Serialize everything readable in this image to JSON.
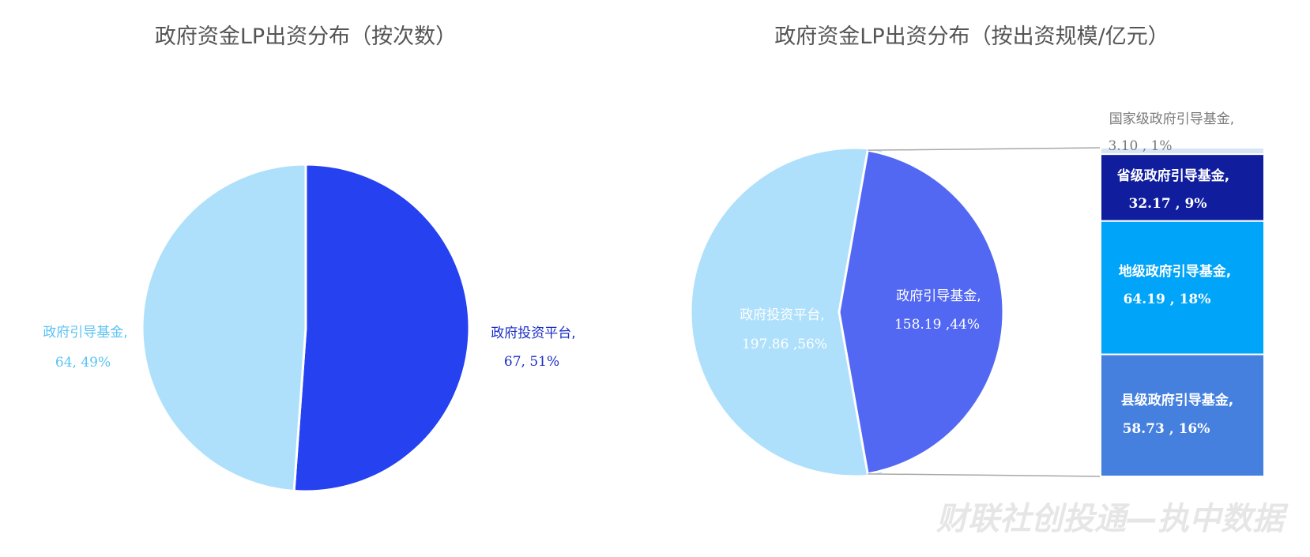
{
  "chart_data": [
    {
      "type": "pie",
      "title": "政府资金LP出资分布（按次数）",
      "slices": [
        {
          "name": "政府投资平台",
          "value": 67,
          "percent": "51%",
          "label_line1": "政府投资平台,",
          "label_line2": "67, 51%",
          "color": "#2541f0"
        },
        {
          "name": "政府引导基金",
          "value": 64,
          "percent": "49%",
          "label_line1": "政府引导基金,",
          "label_line2": "64, 49%",
          "color": "#aee0fc"
        }
      ]
    },
    {
      "type": "bar-of-pie",
      "title": "政府资金LP出资分布（按出资规模/亿元）",
      "pie": [
        {
          "name": "政府投资平台",
          "value": 197.86,
          "percent": "56%",
          "label_line1": "政府投资平台,",
          "label_line2": "197.86 ,56%",
          "color": "#aee0fc"
        },
        {
          "name": "政府引导基金",
          "value": 158.19,
          "percent": "44%",
          "label_line1": "政府引导基金,",
          "label_line2": "158.19 ,44%",
          "color": "#5268f2"
        }
      ],
      "bar": [
        {
          "name": "国家级政府引导基金",
          "value": 3.1,
          "percent": "1%",
          "label_line1": "国家级政府引导基金,",
          "label_line2": "3.10 , 1%",
          "color": "#d6e4f5"
        },
        {
          "name": "省级政府引导基金",
          "value": 32.17,
          "percent": "9%",
          "label_line1": "省级政府引导基金,",
          "label_line2": "32.17 , 9%",
          "color": "#101e9e"
        },
        {
          "name": "地级政府引导基金",
          "value": 64.19,
          "percent": "18%",
          "label_line1": "地级政府引导基金,",
          "label_line2": "64.19 , 18%",
          "color": "#00a4f8"
        },
        {
          "name": "县级政府引导基金",
          "value": 58.73,
          "percent": "16%",
          "label_line1": "县级政府引导基金,",
          "label_line2": "58.73 , 16%",
          "color": "#4580df"
        }
      ]
    }
  ],
  "watermark": "财联社创投通—执中数据"
}
